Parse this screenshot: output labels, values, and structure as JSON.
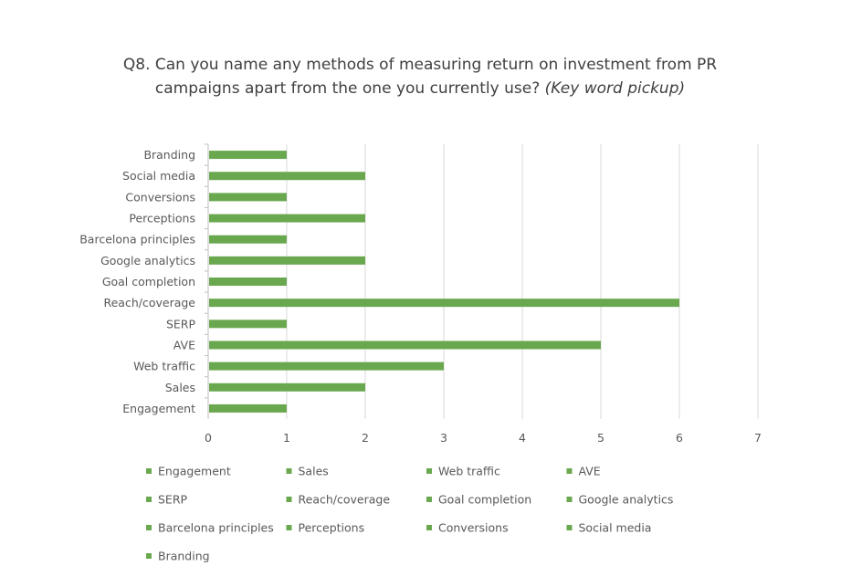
{
  "chart_data": {
    "type": "bar",
    "orientation": "horizontal",
    "title": "Q8. Can you name any methods of measuring return on investment from PR campaigns apart from the one you currently use?",
    "title_suffix": "(Key word pickup)",
    "categories": [
      "Engagement",
      "Sales",
      "Web traffic",
      "AVE",
      "SERP",
      "Reach/coverage",
      "Goal completion",
      "Google analytics",
      "Barcelona principles",
      "Perceptions",
      "Conversions",
      "Social media",
      "Branding"
    ],
    "values": [
      1,
      2,
      3,
      5,
      1,
      6,
      1,
      2,
      1,
      2,
      1,
      2,
      1
    ],
    "xlim": [
      0,
      7
    ],
    "xticks": [
      "0",
      "1",
      "2",
      "3",
      "4",
      "5",
      "6",
      "7"
    ],
    "grid": true,
    "legend": "bottom",
    "color": "#6aa84f"
  }
}
